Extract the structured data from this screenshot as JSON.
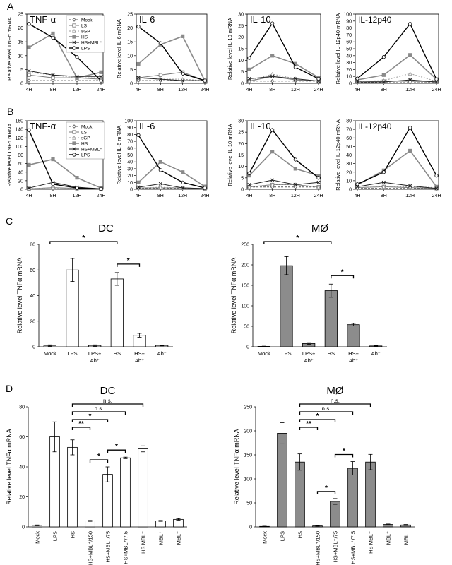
{
  "panel_labels": [
    "A",
    "B",
    "C",
    "D"
  ],
  "chart_data": [
    {
      "id": "A1",
      "panel": "A",
      "type": "line",
      "title": "TNF-α",
      "ylabel": "Relative level TNFα mRNA",
      "ylim": [
        0,
        25
      ],
      "yticks": [
        0,
        5,
        10,
        15,
        20,
        25
      ],
      "categories": [
        "4H",
        "8H",
        "12H",
        "24H"
      ],
      "series": [
        {
          "name": "Mock",
          "values": [
            1,
            1,
            1,
            1
          ]
        },
        {
          "name": "LS",
          "values": [
            3,
            2,
            2,
            1.5
          ]
        },
        {
          "name": "sGP",
          "values": [
            4,
            3,
            2,
            2
          ]
        },
        {
          "name": "HS",
          "values": [
            13,
            18,
            2,
            4
          ]
        },
        {
          "name": "HS+MBL⁺",
          "values": [
            4.5,
            3,
            2.5,
            2.5
          ]
        },
        {
          "name": "LPS",
          "values": [
            21.5,
            16.5,
            9.5,
            1
          ]
        }
      ]
    },
    {
      "id": "A2",
      "panel": "A",
      "type": "line",
      "title": "IL-6",
      "ylabel": "Relative level IL-6 mRNA",
      "ylim": [
        0,
        25
      ],
      "yticks": [
        0,
        5,
        10,
        15,
        20,
        25
      ],
      "categories": [
        "4H",
        "8H",
        "12H",
        "24H"
      ],
      "series": [
        {
          "name": "Mock",
          "values": [
            1,
            1,
            1,
            1
          ]
        },
        {
          "name": "LS",
          "values": [
            2,
            3,
            4,
            1
          ]
        },
        {
          "name": "sGP",
          "values": [
            2,
            1.5,
            1.5,
            1
          ]
        },
        {
          "name": "HS",
          "values": [
            7,
            14,
            17,
            1
          ]
        },
        {
          "name": "HS+MBL⁺",
          "values": [
            2,
            1.5,
            1,
            1
          ]
        },
        {
          "name": "LPS",
          "values": [
            20.5,
            14.5,
            3.5,
            1
          ]
        }
      ]
    },
    {
      "id": "A3",
      "panel": "A",
      "type": "line",
      "title": "IL-10",
      "ylabel": "Relative level IL-10 mRNA",
      "ylim": [
        0,
        30
      ],
      "yticks": [
        0,
        5,
        10,
        15,
        20,
        25,
        30
      ],
      "categories": [
        "4H",
        "8H",
        "12H",
        "24H"
      ],
      "series": [
        {
          "name": "Mock",
          "values": [
            1,
            1,
            1,
            1
          ]
        },
        {
          "name": "LS",
          "values": [
            1,
            3,
            1.5,
            1
          ]
        },
        {
          "name": "sGP",
          "values": [
            1,
            4,
            2,
            1
          ]
        },
        {
          "name": "HS",
          "values": [
            6,
            12,
            8.5,
            2.5
          ]
        },
        {
          "name": "HS+MBL⁺",
          "values": [
            2,
            3,
            2,
            1
          ]
        },
        {
          "name": "LPS",
          "values": [
            11,
            26,
            7,
            2
          ]
        }
      ]
    },
    {
      "id": "A4",
      "panel": "A",
      "type": "line",
      "title": "IL-12p40",
      "ylabel": "Relative level IL-12p40 mRNA",
      "ylim": [
        0,
        100
      ],
      "yticks": [
        0,
        10,
        20,
        30,
        40,
        50,
        60,
        70,
        80,
        90,
        100
      ],
      "categories": [
        "4H",
        "8H",
        "12H",
        "24H"
      ],
      "series": [
        {
          "name": "Mock",
          "values": [
            1,
            1,
            1,
            1
          ]
        },
        {
          "name": "LS",
          "values": [
            2,
            3,
            3,
            2
          ]
        },
        {
          "name": "sGP",
          "values": [
            3,
            4,
            14,
            3
          ]
        },
        {
          "name": "HS",
          "values": [
            5,
            12,
            41,
            6
          ]
        },
        {
          "name": "HS+MBL⁺",
          "values": [
            2,
            2,
            5,
            2
          ]
        },
        {
          "name": "LPS",
          "values": [
            7,
            38,
            86,
            6
          ]
        }
      ]
    },
    {
      "id": "B1",
      "panel": "B",
      "type": "line",
      "title": "TNF-α",
      "ylabel": "Relative level TNFα mRNA",
      "ylim": [
        0,
        160
      ],
      "yticks": [
        0,
        20,
        40,
        60,
        80,
        100,
        120,
        140,
        160
      ],
      "categories": [
        "4H",
        "8H",
        "12H",
        "24H"
      ],
      "series": [
        {
          "name": "Mock",
          "values": [
            1,
            1,
            1,
            1
          ]
        },
        {
          "name": "LS",
          "values": [
            1,
            4,
            2,
            1
          ]
        },
        {
          "name": "sGP",
          "values": [
            2,
            3,
            2,
            1
          ]
        },
        {
          "name": "HS",
          "values": [
            57,
            70,
            27,
            3
          ]
        },
        {
          "name": "HS+MBL⁺",
          "values": [
            3,
            16,
            5,
            1
          ]
        },
        {
          "name": "LPS",
          "values": [
            138,
            12,
            3,
            1
          ]
        }
      ]
    },
    {
      "id": "B2",
      "panel": "B",
      "type": "line",
      "title": "IL-6",
      "ylabel": "Relative level IL-6 mRNA",
      "ylim": [
        0,
        100
      ],
      "yticks": [
        0,
        10,
        20,
        30,
        40,
        50,
        60,
        70,
        80,
        90,
        100
      ],
      "categories": [
        "4H",
        "8H",
        "12H",
        "24H"
      ],
      "series": [
        {
          "name": "Mock",
          "values": [
            1,
            1,
            1,
            1
          ]
        },
        {
          "name": "LS",
          "values": [
            2,
            2,
            2,
            1
          ]
        },
        {
          "name": "sGP",
          "values": [
            2,
            3,
            2,
            1
          ]
        },
        {
          "name": "HS",
          "values": [
            10,
            40,
            25,
            4
          ]
        },
        {
          "name": "HS+MBL⁺",
          "values": [
            3,
            8,
            2,
            1
          ]
        },
        {
          "name": "LPS",
          "values": [
            79,
            28,
            10,
            2
          ]
        }
      ]
    },
    {
      "id": "B3",
      "panel": "B",
      "type": "line",
      "title": "IL-10",
      "ylabel": "Relative level IL-10 mRNA",
      "ylim": [
        0,
        30
      ],
      "yticks": [
        0,
        5,
        10,
        15,
        20,
        25,
        30
      ],
      "categories": [
        "4H",
        "8H",
        "12H",
        "24H"
      ],
      "series": [
        {
          "name": "Mock",
          "values": [
            1,
            1,
            1,
            1
          ]
        },
        {
          "name": "LS",
          "values": [
            1,
            2,
            2,
            1
          ]
        },
        {
          "name": "sGP",
          "values": [
            1,
            2,
            2,
            1
          ]
        },
        {
          "name": "HS",
          "values": [
            6,
            16.5,
            9,
            6
          ]
        },
        {
          "name": "HS+MBL⁺",
          "values": [
            2,
            4,
            2,
            3
          ]
        },
        {
          "name": "LPS",
          "values": [
            7,
            26,
            13,
            5
          ]
        }
      ]
    },
    {
      "id": "B4",
      "panel": "B",
      "type": "line",
      "title": "IL-12p40",
      "ylabel": "Relative level IL-12p40 mRNA",
      "ylim": [
        0,
        80
      ],
      "yticks": [
        0,
        10,
        20,
        30,
        40,
        50,
        60,
        70,
        80
      ],
      "categories": [
        "4H",
        "8H",
        "12H",
        "24H"
      ],
      "series": [
        {
          "name": "Mock",
          "values": [
            1,
            1,
            1,
            1
          ]
        },
        {
          "name": "LS",
          "values": [
            2,
            3,
            2,
            1
          ]
        },
        {
          "name": "sGP",
          "values": [
            2,
            3,
            3,
            2
          ]
        },
        {
          "name": "HS",
          "values": [
            5,
            22,
            45,
            3
          ]
        },
        {
          "name": "HS+MBL⁺",
          "values": [
            3,
            8,
            4,
            1
          ]
        },
        {
          "name": "LPS",
          "values": [
            6,
            20,
            72,
            16
          ]
        }
      ]
    },
    {
      "id": "C1",
      "panel": "C",
      "type": "bar",
      "title": "DC",
      "ylabel": "Relative level TNFα mRNA",
      "ylim": [
        0,
        80
      ],
      "yticks": [
        0,
        20,
        40,
        60,
        80
      ],
      "categories": [
        "Mock",
        "LPS",
        "LPS+\nAb⁺",
        "HS",
        "HS+\nAb⁺",
        "Ab⁺"
      ],
      "values": [
        1,
        60,
        1,
        53,
        9,
        1
      ],
      "errors": [
        0.5,
        9,
        0.5,
        5,
        1.5,
        0.3
      ],
      "fill": "#ffffff",
      "significance": [
        {
          "from": 0,
          "to": 3,
          "label": "*"
        },
        {
          "from": 3,
          "to": 4,
          "label": "*"
        }
      ]
    },
    {
      "id": "C2",
      "panel": "C",
      "type": "bar",
      "title": "MØ",
      "ylabel": "Relative level TNFα mRNA",
      "ylim": [
        0,
        250
      ],
      "yticks": [
        0,
        50,
        100,
        150,
        200,
        250
      ],
      "categories": [
        "Mock",
        "LPS",
        "LPS+\nAb⁺",
        "HS",
        "HS+\nAb⁺",
        "Ab⁺"
      ],
      "values": [
        1,
        198,
        8,
        137,
        54,
        2
      ],
      "errors": [
        0.5,
        22,
        2,
        16,
        3,
        1
      ],
      "fill": "#8c8c8c",
      "significance": [
        {
          "from": 0,
          "to": 3,
          "label": "*"
        },
        {
          "from": 3,
          "to": 4,
          "label": "*"
        }
      ]
    },
    {
      "id": "D1",
      "panel": "D",
      "type": "bar",
      "title": "DC",
      "ylabel": "Relative level TNFα mRNA",
      "ylim": [
        0,
        80
      ],
      "yticks": [
        0,
        20,
        40,
        60,
        80
      ],
      "categories": [
        "Mock",
        "LPS",
        "HS",
        "HS+MBL⁺/150",
        "HS+MBL⁺/75",
        "HS+MBL⁺/7.5",
        "HS MBL⁻",
        "MBL⁺",
        "MBL⁻"
      ],
      "values": [
        1,
        60,
        53,
        4,
        35,
        46,
        52,
        4,
        5
      ],
      "errors": [
        0.3,
        10,
        5,
        0.3,
        5,
        0.5,
        2,
        0.3,
        0.5
      ],
      "fill": "#ffffff",
      "significance": [
        {
          "from": 2,
          "to": 3,
          "label": "**"
        },
        {
          "from": 2,
          "to": 4,
          "label": "*"
        },
        {
          "from": 2,
          "to": 5,
          "label": "n.s."
        },
        {
          "from": 2,
          "to": 6,
          "label": "n.s."
        },
        {
          "from": 3,
          "to": 4,
          "label": "*"
        },
        {
          "from": 4,
          "to": 5,
          "label": "*"
        }
      ]
    },
    {
      "id": "D2",
      "panel": "D",
      "type": "bar",
      "title": "MØ",
      "ylabel": "Relative level TNFα mRNA",
      "ylim": [
        0,
        250
      ],
      "yticks": [
        0,
        50,
        100,
        150,
        200,
        250
      ],
      "categories": [
        "Mock",
        "LPS",
        "HS",
        "HS+MBL⁺/150",
        "HS+MBL⁺/75",
        "HS+MBL⁺/7.5",
        "HS MBL⁻",
        "MBL⁺",
        "MBL⁻"
      ],
      "values": [
        1,
        195,
        135,
        2,
        53,
        122,
        135,
        5,
        4
      ],
      "errors": [
        0.5,
        22,
        17,
        0.5,
        6,
        14,
        16,
        1,
        1
      ],
      "fill": "#8c8c8c",
      "significance": [
        {
          "from": 2,
          "to": 3,
          "label": "**"
        },
        {
          "from": 2,
          "to": 4,
          "label": "*"
        },
        {
          "from": 2,
          "to": 5,
          "label": "n.s."
        },
        {
          "from": 2,
          "to": 6,
          "label": "n.s."
        },
        {
          "from": 3,
          "to": 4,
          "label": "*"
        },
        {
          "from": 4,
          "to": 5,
          "label": "*"
        }
      ]
    }
  ]
}
